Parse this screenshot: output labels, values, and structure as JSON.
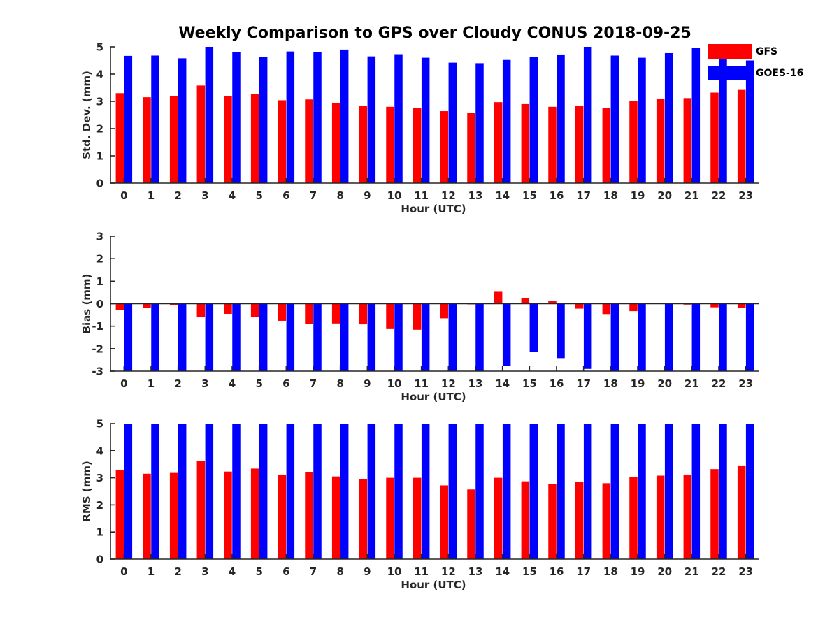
{
  "chart_data": {
    "title": "Weekly Comparison to GPS over Cloudy CONUS 2018-09-25",
    "type": "bar",
    "categories": [
      "0",
      "1",
      "2",
      "3",
      "4",
      "5",
      "6",
      "7",
      "8",
      "9",
      "10",
      "11",
      "12",
      "13",
      "14",
      "15",
      "16",
      "17",
      "18",
      "19",
      "20",
      "21",
      "22",
      "23"
    ],
    "legend": {
      "placement": "top-right",
      "entries": [
        {
          "name": "GFS",
          "color": "#ff0000"
        },
        {
          "name": "GOES-16",
          "color": "#0000ff"
        }
      ]
    },
    "panels": [
      {
        "key": "std",
        "xlabel": "Hour (UTC)",
        "ylabel": "Std. Dev. (mm)",
        "ylim": [
          0,
          5
        ],
        "yticks": [
          0,
          1,
          2,
          3,
          4,
          5
        ],
        "series": [
          {
            "name": "GFS",
            "color": "#ff0000",
            "values": [
              3.3,
              3.15,
              3.18,
              3.58,
              3.2,
              3.28,
              3.04,
              3.07,
              2.94,
              2.82,
              2.8,
              2.76,
              2.64,
              2.58,
              2.97,
              2.9,
              2.8,
              2.84,
              2.76,
              3.01,
              3.08,
              3.12,
              3.32,
              3.42
            ]
          },
          {
            "name": "GOES-16",
            "color": "#0000ff",
            "values": [
              4.67,
              4.68,
              4.58,
              5.0,
              4.8,
              4.63,
              4.83,
              4.8,
              4.9,
              4.65,
              4.73,
              4.6,
              4.42,
              4.4,
              4.52,
              4.62,
              4.72,
              5.0,
              4.68,
              4.6,
              4.77,
              4.96,
              4.55,
              4.5
            ]
          }
        ]
      },
      {
        "key": "bias",
        "xlabel": "Hour (UTC)",
        "ylabel": "Bias (mm)",
        "ylim": [
          -3,
          3
        ],
        "yticks": [
          -3,
          -2,
          -1,
          0,
          1,
          2,
          3
        ],
        "zero_line": true,
        "series": [
          {
            "name": "GFS",
            "color": "#ff0000",
            "values": [
              -0.28,
              -0.2,
              -0.06,
              -0.6,
              -0.45,
              -0.6,
              -0.76,
              -0.9,
              -0.88,
              -0.92,
              -1.13,
              -1.16,
              -0.65,
              -0.03,
              0.53,
              0.25,
              0.12,
              -0.22,
              -0.46,
              -0.33,
              0.0,
              -0.04,
              -0.16,
              -0.2
            ]
          },
          {
            "name": "GOES-16",
            "color": "#0000ff",
            "values": [
              -3.0,
              -3.0,
              -3.0,
              -3.0,
              -3.0,
              -3.0,
              -3.0,
              -3.0,
              -3.0,
              -3.0,
              -3.0,
              -3.0,
              -3.0,
              -3.0,
              -2.77,
              -2.16,
              -2.42,
              -2.9,
              -3.0,
              -3.0,
              -3.0,
              -3.0,
              -3.0,
              -3.0
            ]
          }
        ]
      },
      {
        "key": "rms",
        "xlabel": "Hour (UTC)",
        "ylabel": "RMS (mm)",
        "ylim": [
          0,
          5
        ],
        "yticks": [
          0,
          1,
          2,
          3,
          4,
          5
        ],
        "series": [
          {
            "name": "GFS",
            "color": "#ff0000",
            "values": [
              3.3,
              3.15,
              3.18,
              3.62,
              3.23,
              3.34,
              3.12,
              3.2,
              3.05,
              2.95,
              3.0,
              3.0,
              2.72,
              2.57,
              3.0,
              2.87,
              2.77,
              2.85,
              2.8,
              3.03,
              3.08,
              3.12,
              3.32,
              3.43
            ]
          },
          {
            "name": "GOES-16",
            "color": "#0000ff",
            "values": [
              5,
              5,
              5,
              5,
              5,
              5,
              5,
              5,
              5,
              5,
              5,
              5,
              5,
              5,
              5,
              5,
              5,
              5,
              5,
              5,
              5,
              5,
              5,
              5
            ]
          }
        ]
      }
    ]
  }
}
